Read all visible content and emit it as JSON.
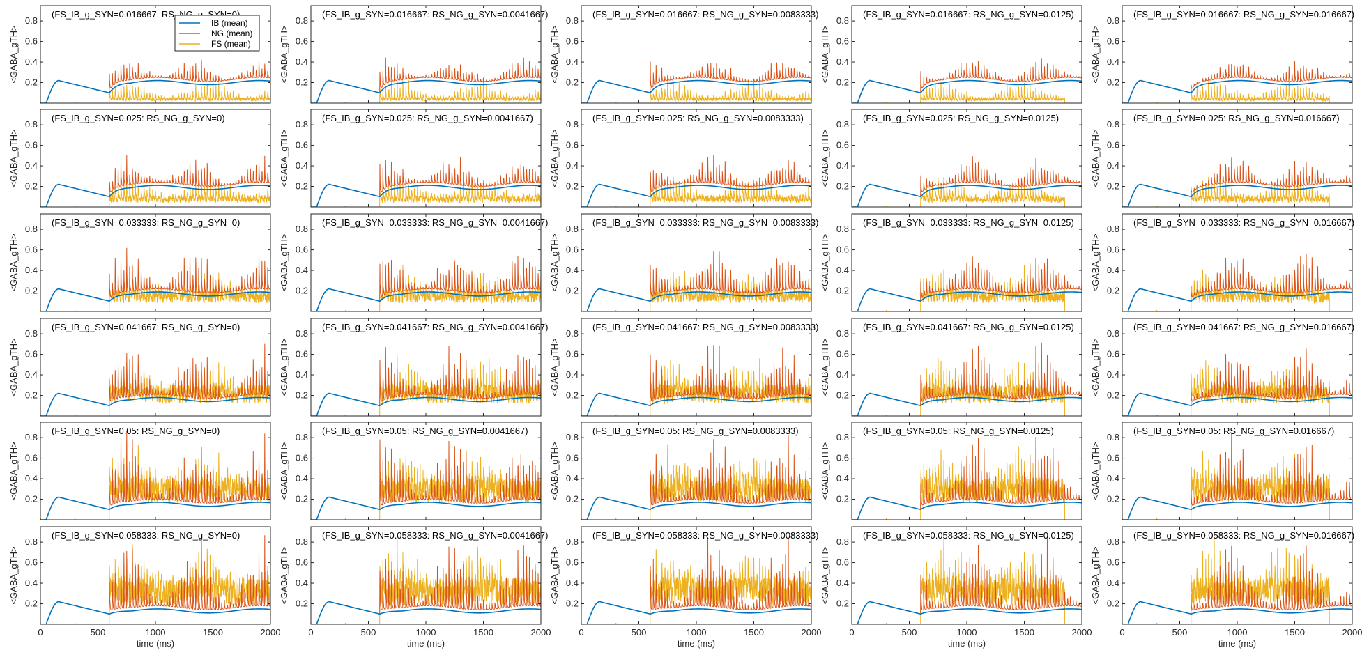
{
  "figure": {
    "grid_rows": 6,
    "grid_cols": 5
  },
  "chart_data": {
    "type": "line",
    "x_label": "time (ms)",
    "y_label": "<GABA_gTH>",
    "xlim": [
      0,
      2000
    ],
    "ylim": [
      0,
      0.95
    ],
    "x_ticks": [
      "0",
      "500",
      "1000",
      "1500",
      "2000"
    ],
    "y_ticks": [
      "0.2",
      "0.4",
      "0.6",
      "0.8"
    ],
    "x_tick_values": [
      0,
      500,
      1000,
      1500,
      2000
    ],
    "y_tick_values": [
      0.2,
      0.4,
      0.6,
      0.8
    ],
    "grid": false,
    "legend": {
      "placement": "top-right of first panel",
      "entries": [
        {
          "label": "IB (mean)",
          "color": "#0072BD"
        },
        {
          "label": "NG (mean)",
          "color": "#D95319"
        },
        {
          "label": "FS (mean)",
          "color": "#EDB120"
        }
      ]
    },
    "series_colors": {
      "IB": "#0072BD",
      "NG": "#D95319",
      "FS": "#EDB120"
    },
    "FS_IB_g_SYN_values": [
      "0.016667",
      "0.025",
      "0.033333",
      "0.041667",
      "0.05",
      "0.058333"
    ],
    "RS_NG_g_SYN_values": [
      "0",
      "0.0041667",
      "0.0083333",
      "0.0125",
      "0.016667"
    ],
    "panel_titles": [
      [
        "(FS_IB_g_SYN=0.016667: RS_NG_g_SYN=0)",
        "(FS_IB_g_SYN=0.016667: RS_NG_g_SYN=0.0041667)",
        "(FS_IB_g_SYN=0.016667: RS_NG_g_SYN=0.0083333)",
        "(FS_IB_g_SYN=0.016667: RS_NG_g_SYN=0.0125)",
        "(FS_IB_g_SYN=0.016667: RS_NG_g_SYN=0.016667)"
      ],
      [
        "(FS_IB_g_SYN=0.025: RS_NG_g_SYN=0)",
        "(FS_IB_g_SYN=0.025: RS_NG_g_SYN=0.0041667)",
        "(FS_IB_g_SYN=0.025: RS_NG_g_SYN=0.0083333)",
        "(FS_IB_g_SYN=0.025: RS_NG_g_SYN=0.0125)",
        "(FS_IB_g_SYN=0.025: RS_NG_g_SYN=0.016667)"
      ],
      [
        "(FS_IB_g_SYN=0.033333: RS_NG_g_SYN=0)",
        "(FS_IB_g_SYN=0.033333: RS_NG_g_SYN=0.0041667)",
        "(FS_IB_g_SYN=0.033333: RS_NG_g_SYN=0.0083333)",
        "(FS_IB_g_SYN=0.033333: RS_NG_g_SYN=0.0125)",
        "(FS_IB_g_SYN=0.033333: RS_NG_g_SYN=0.016667)"
      ],
      [
        "(FS_IB_g_SYN=0.041667: RS_NG_g_SYN=0)",
        "(FS_IB_g_SYN=0.041667: RS_NG_g_SYN=0.0041667)",
        "(FS_IB_g_SYN=0.041667: RS_NG_g_SYN=0.0083333)",
        "(FS_IB_g_SYN=0.041667: RS_NG_g_SYN=0.0125)",
        "(FS_IB_g_SYN=0.041667: RS_NG_g_SYN=0.016667)"
      ],
      [
        "(FS_IB_g_SYN=0.05: RS_NG_g_SYN=0)",
        "(FS_IB_g_SYN=0.05: RS_NG_g_SYN=0.0041667)",
        "(FS_IB_g_SYN=0.05: RS_NG_g_SYN=0.0083333)",
        "(FS_IB_g_SYN=0.05: RS_NG_g_SYN=0.0125)",
        "(FS_IB_g_SYN=0.05: RS_NG_g_SYN=0.016667)"
      ],
      [
        "(FS_IB_g_SYN=0.058333: RS_NG_g_SYN=0)",
        "(FS_IB_g_SYN=0.058333: RS_NG_g_SYN=0.0041667)",
        "(FS_IB_g_SYN=0.058333: RS_NG_g_SYN=0.0083333)",
        "(FS_IB_g_SYN=0.058333: RS_NG_g_SYN=0.0125)",
        "(FS_IB_g_SYN=0.058333: RS_NG_g_SYN=0.016667)"
      ]
    ],
    "envelope": {
      "description_points_x": [
        0,
        50,
        100,
        150,
        600,
        650,
        2000
      ],
      "ib_rise_peak": 0.22,
      "ib_rise_peak_time": 160,
      "ib_value_at_600": 0.1,
      "ib_active_level_by_row": [
        0.2,
        0.19,
        0.17,
        0.16,
        0.15,
        0.13
      ],
      "ng_spike_peak_by_row": [
        0.42,
        0.48,
        0.6,
        0.7,
        0.85,
        0.88
      ],
      "fs_spike_peak_by_row": [
        0.25,
        0.35,
        0.5,
        0.65,
        0.82,
        0.88
      ],
      "fs_band_top_by_row": [
        0.05,
        0.1,
        0.2,
        0.3,
        0.4,
        0.45
      ],
      "fs_stop_time_by_col": [
        2000,
        2000,
        2000,
        1850,
        1800
      ],
      "burst_onset_time": 600,
      "spike_interval_ms": 25
    }
  }
}
